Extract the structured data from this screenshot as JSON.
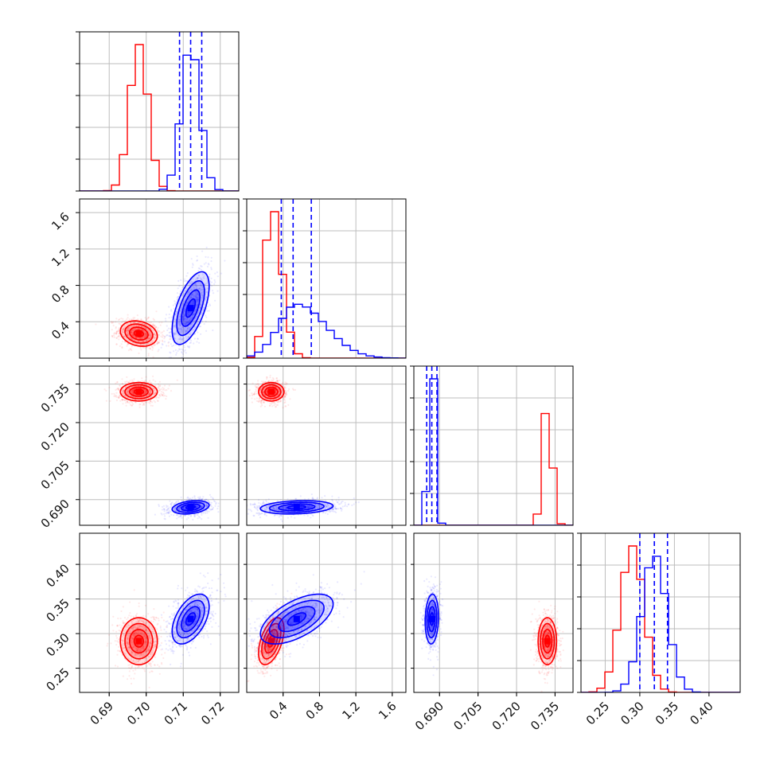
{
  "chart_data": {
    "type": "corner",
    "grid": true,
    "colors": {
      "red": "#ff0000",
      "blue": "#0000ff"
    },
    "parameters": [
      {
        "range": [
          0.682,
          0.725
        ],
        "ticks": [
          0.69,
          0.7,
          0.71,
          0.72
        ],
        "tick_labels": [
          "0.69",
          "0.70",
          "0.71",
          "0.72"
        ]
      },
      {
        "range": [
          0.0,
          1.75
        ],
        "ticks": [
          0.4,
          0.8,
          1.2,
          1.6
        ],
        "tick_labels": [
          "0.4",
          "0.8",
          "1.2",
          "1.6"
        ]
      },
      {
        "range": [
          0.68,
          0.742
        ],
        "ticks": [
          0.69,
          0.705,
          0.72,
          0.735
        ],
        "tick_labels": [
          "0.690",
          "0.705",
          "0.720",
          "0.735"
        ]
      },
      {
        "range": [
          0.215,
          0.445
        ],
        "ticks": [
          0.25,
          0.3,
          0.35,
          0.4
        ],
        "tick_labels": [
          "0.25",
          "0.30",
          "0.35",
          "0.40"
        ]
      }
    ],
    "series": [
      {
        "color": "#ff0000",
        "mean": [
          0.698,
          0.27,
          0.732,
          0.289
        ],
        "sd": [
          0.0025,
          0.07,
          0.0018,
          0.017
        ],
        "corr": {
          "0-1": -0.2,
          "0-2": 0.0,
          "0-3": 0.0,
          "1-2": 0.0,
          "1-3": 0.5,
          "2-3": 0.0
        }
      },
      {
        "color": "#0000ff",
        "mean": [
          0.712,
          0.55,
          0.687,
          0.321
        ],
        "sd": [
          0.0025,
          0.2,
          0.0013,
          0.018
        ],
        "corr": {
          "0-1": 0.6,
          "0-2": 0.3,
          "0-3": 0.5,
          "1-2": 0.2,
          "1-3": 0.6,
          "2-3": 0.1
        }
      }
    ],
    "quantile_lines": [
      {
        "param": 0,
        "values": [
          0.709,
          0.712,
          0.715
        ]
      },
      {
        "param": 1,
        "values": [
          0.38,
          0.51,
          0.71
        ]
      },
      {
        "param": 2,
        "values": [
          0.685,
          0.687,
          0.689
        ]
      },
      {
        "param": 3,
        "values": [
          0.3,
          0.321,
          0.34
        ]
      }
    ]
  }
}
